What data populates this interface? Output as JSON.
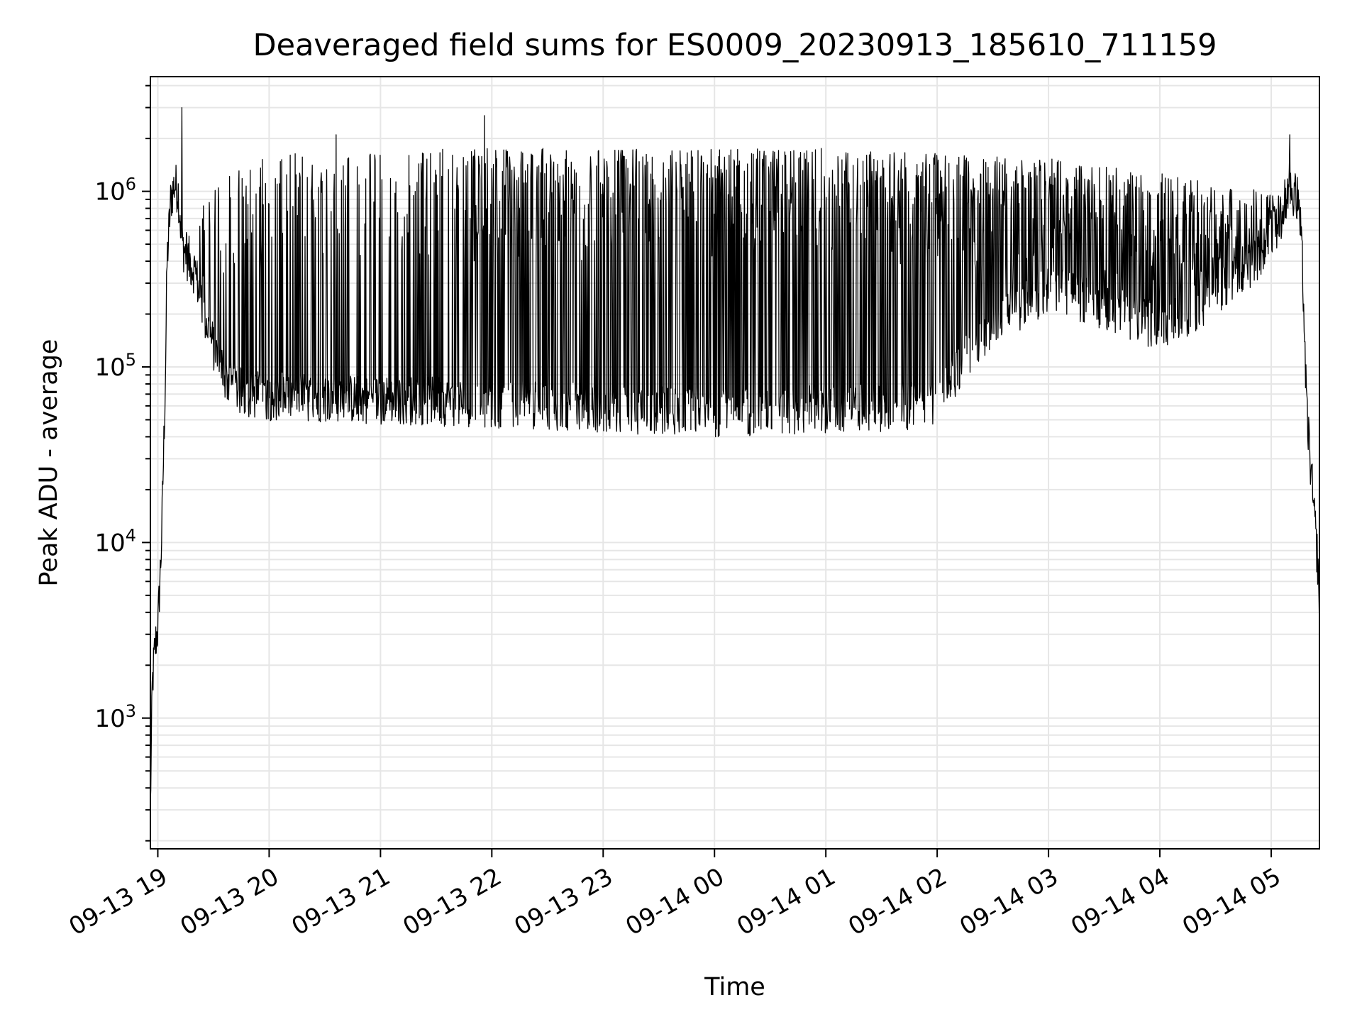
{
  "chart_data": {
    "type": "line",
    "title": "Deaveraged field sums for ES0009_20230913_185610_711159",
    "xlabel": "Time",
    "ylabel": "Peak ADU - average",
    "yscale": "log",
    "ylim": [
      180,
      4500000
    ],
    "xlim": [
      "2023-09-13 18:56",
      "2023-09-14 05:26"
    ],
    "grid": true,
    "line_color": "#000000",
    "grid_color": "#e6e6e6",
    "x_ticks": [
      {
        "value": "2023-09-13 19:00",
        "label": "09-13 19"
      },
      {
        "value": "2023-09-13 20:00",
        "label": "09-13 20"
      },
      {
        "value": "2023-09-13 21:00",
        "label": "09-13 21"
      },
      {
        "value": "2023-09-13 22:00",
        "label": "09-13 22"
      },
      {
        "value": "2023-09-13 23:00",
        "label": "09-13 23"
      },
      {
        "value": "2023-09-14 00:00",
        "label": "09-14 00"
      },
      {
        "value": "2023-09-14 01:00",
        "label": "09-14 01"
      },
      {
        "value": "2023-09-14 02:00",
        "label": "09-14 02"
      },
      {
        "value": "2023-09-14 03:00",
        "label": "09-14 03"
      },
      {
        "value": "2023-09-14 04:00",
        "label": "09-14 04"
      },
      {
        "value": "2023-09-14 05:00",
        "label": "09-14 05"
      }
    ],
    "y_ticks": [
      {
        "value": 1000,
        "base": "10",
        "exp": "3"
      },
      {
        "value": 10000,
        "base": "10",
        "exp": "4"
      },
      {
        "value": 100000,
        "base": "10",
        "exp": "5"
      },
      {
        "value": 1000000,
        "base": "10",
        "exp": "6"
      }
    ],
    "series": [
      {
        "baseline": [
          [
            "2023-09-13 18:56",
            300
          ],
          [
            "2023-09-13 18:57",
            1500
          ],
          [
            "2023-09-13 18:58",
            2200
          ],
          [
            "2023-09-13 18:59",
            2800
          ],
          [
            "2023-09-13 19:00",
            3200
          ],
          [
            "2023-09-13 19:02",
            10000
          ],
          [
            "2023-09-13 19:04",
            80000
          ],
          [
            "2023-09-13 19:05",
            400000
          ],
          [
            "2023-09-13 19:07",
            900000
          ],
          [
            "2023-09-13 19:09",
            1100000
          ],
          [
            "2023-09-13 19:11",
            1000000
          ],
          [
            "2023-09-13 19:13",
            500000
          ],
          [
            "2023-09-13 19:16",
            420000
          ],
          [
            "2023-09-13 19:20",
            350000
          ],
          [
            "2023-09-13 19:25",
            200000
          ],
          [
            "2023-09-13 19:30",
            130000
          ],
          [
            "2023-09-13 19:37",
            85000
          ],
          [
            "2023-09-13 19:45",
            72000
          ],
          [
            "2023-09-13 20:00",
            68000
          ],
          [
            "2023-09-13 21:00",
            65000
          ],
          [
            "2023-09-13 22:00",
            62000
          ],
          [
            "2023-09-13 23:00",
            58000
          ],
          [
            "2023-09-14 00:00",
            55000
          ],
          [
            "2023-09-14 01:00",
            58000
          ],
          [
            "2023-09-14 01:55",
            60000
          ],
          [
            "2023-09-14 02:05",
            80000
          ],
          [
            "2023-09-14 02:30",
            180000
          ],
          [
            "2023-09-14 03:00",
            280000
          ],
          [
            "2023-09-14 03:30",
            220000
          ],
          [
            "2023-09-14 04:00",
            170000
          ],
          [
            "2023-09-14 04:30",
            250000
          ],
          [
            "2023-09-14 04:50",
            380000
          ],
          [
            "2023-09-14 05:05",
            700000
          ],
          [
            "2023-09-14 05:10",
            1100000
          ],
          [
            "2023-09-14 05:15",
            850000
          ],
          [
            "2023-09-14 05:17",
            350000
          ],
          [
            "2023-09-14 05:19",
            60000
          ],
          [
            "2023-09-14 05:21",
            30000
          ],
          [
            "2023-09-14 05:23",
            15000
          ],
          [
            "2023-09-14 05:25",
            8000
          ],
          [
            "2023-09-14 05:26",
            4000
          ]
        ],
        "spike_envelope": [
          [
            "2023-09-13 19:15",
            800000
          ],
          [
            "2023-09-13 20:00",
            1500000
          ],
          [
            "2023-09-13 21:00",
            1550000
          ],
          [
            "2023-09-13 22:00",
            1600000
          ],
          [
            "2023-09-13 23:00",
            1600000
          ],
          [
            "2023-09-14 00:00",
            1600000
          ],
          [
            "2023-09-14 01:00",
            1600000
          ],
          [
            "2023-09-14 02:00",
            1500000
          ],
          [
            "2023-09-14 03:00",
            1400000
          ],
          [
            "2023-09-14 04:00",
            1150000
          ],
          [
            "2023-09-14 05:00",
            900000
          ]
        ],
        "notable_peaks": [
          [
            "2023-09-13 19:13",
            3000000
          ],
          [
            "2023-09-13 21:56",
            2700000
          ],
          [
            "2023-09-13 20:36",
            2100000
          ],
          [
            "2023-09-14 05:10",
            2100000
          ]
        ]
      }
    ]
  }
}
